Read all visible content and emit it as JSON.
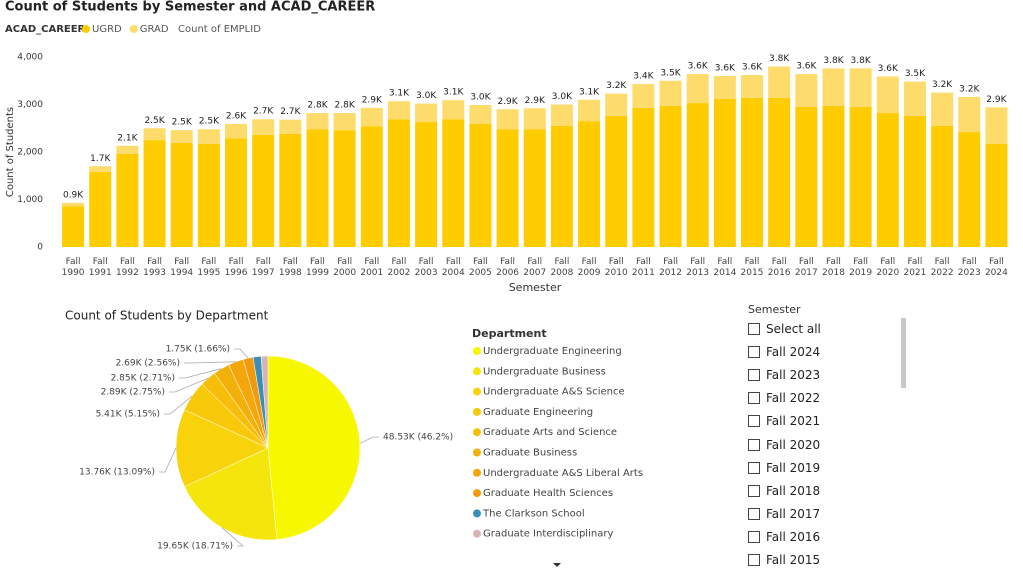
{
  "chart_data": [
    {
      "type": "stacked_bar",
      "title": "Count of Students by Semester and ACAD_CAREER",
      "legend_title": "ACAD_CAREER",
      "total_legend": "Count of EMPLID",
      "x_label": "Semester",
      "y_label": "Count of Students",
      "categories": [
        "Fall 1990",
        "Fall 1991",
        "Fall 1992",
        "Fall 1993",
        "Fall 1994",
        "Fall 1995",
        "Fall 1996",
        "Fall 1997",
        "Fall 1998",
        "Fall 1999",
        "Fall 2000",
        "Fall 2001",
        "Fall 2002",
        "Fall 2003",
        "Fall 2004",
        "Fall 2005",
        "Fall 2006",
        "Fall 2007",
        "Fall 2008",
        "Fall 2009",
        "Fall 2010",
        "Fall 2011",
        "Fall 2012",
        "Fall 2013",
        "Fall 2014",
        "Fall 2015",
        "Fall 2016",
        "Fall 2017",
        "Fall 2018",
        "Fall 2019",
        "Fall 2020",
        "Fall 2021",
        "Fall 2022",
        "Fall 2023",
        "Fall 2024"
      ],
      "series": [
        {
          "name": "UGRD",
          "color": "#FFCC00",
          "values": [
            860,
            1580,
            1960,
            2250,
            2190,
            2170,
            2290,
            2360,
            2380,
            2480,
            2460,
            2540,
            2690,
            2630,
            2690,
            2590,
            2480,
            2480,
            2550,
            2650,
            2760,
            2930,
            2970,
            3030,
            3120,
            3140,
            3140,
            2950,
            2970,
            2950,
            2820,
            2760,
            2550,
            2420,
            2170
          ]
        },
        {
          "name": "GRAD",
          "color": "#FDDC6B",
          "values": [
            70,
            120,
            170,
            250,
            270,
            310,
            300,
            330,
            300,
            340,
            360,
            390,
            380,
            390,
            400,
            400,
            420,
            440,
            450,
            450,
            470,
            500,
            530,
            610,
            480,
            480,
            660,
            690,
            790,
            810,
            770,
            720,
            700,
            740,
            770
          ]
        }
      ],
      "total_labels": [
        "0.9K",
        "1.7K",
        "2.1K",
        "2.5K",
        "2.5K",
        "2.5K",
        "2.6K",
        "2.7K",
        "2.7K",
        "2.8K",
        "2.8K",
        "2.9K",
        "3.1K",
        "3.0K",
        "3.1K",
        "3.0K",
        "2.9K",
        "2.9K",
        "3.0K",
        "3.1K",
        "3.2K",
        "3.4K",
        "3.5K",
        "3.6K",
        "3.6K",
        "3.6K",
        "3.8K",
        "3.6K",
        "3.8K",
        "3.8K",
        "3.6K",
        "3.5K",
        "3.2K",
        "3.2K",
        "2.9K"
      ],
      "ylim": [
        0,
        4000
      ],
      "yticks": [
        0,
        {
          "value": 1000,
          "label": "1,000"
        },
        {
          "value": 2000,
          "label": "2,000"
        },
        {
          "value": 3000,
          "label": "3,000"
        },
        {
          "value": 4000,
          "label": "4,000"
        }
      ]
    },
    {
      "type": "pie",
      "title": "Count of Students by Department",
      "legend_title": "Department",
      "categories": [
        "Undergraduate Engineering",
        "Undergraduate Business",
        "Undergraduate A&S Science",
        "Graduate Engineering",
        "Graduate Arts and Science",
        "Graduate Business",
        "Undergraduate A&S Liberal Arts",
        "Graduate Health Sciences",
        "The Clarkson School",
        "Graduate Interdisciplinary"
      ],
      "values": [
        48530,
        19650,
        13760,
        5410,
        2890,
        2850,
        2690,
        1750,
        1400,
        1200
      ],
      "value_labels": [
        "48.53K (46.2%)",
        "19.65K (18.71%)",
        "13.76K (13.09%)",
        "5.41K (5.15%)",
        "2.89K (2.75%)",
        "2.85K (2.71%)",
        "2.69K (2.56%)",
        "1.75K (1.66%)",
        null,
        null
      ],
      "colors": [
        "#F7F700",
        "#F4E60C",
        "#F8D30C",
        "#F7C90A",
        "#F6BD0B",
        "#F2B00A",
        "#F4A60B",
        "#F29A0D",
        "#3A8FB7",
        "#D8B4B4"
      ]
    }
  ],
  "slicer": {
    "title": "Semester",
    "items": [
      "Select all",
      "Fall 2024",
      "Fall 2023",
      "Fall 2022",
      "Fall 2021",
      "Fall 2020",
      "Fall 2019",
      "Fall 2018",
      "Fall 2017",
      "Fall 2016",
      "Fall 2015"
    ]
  }
}
